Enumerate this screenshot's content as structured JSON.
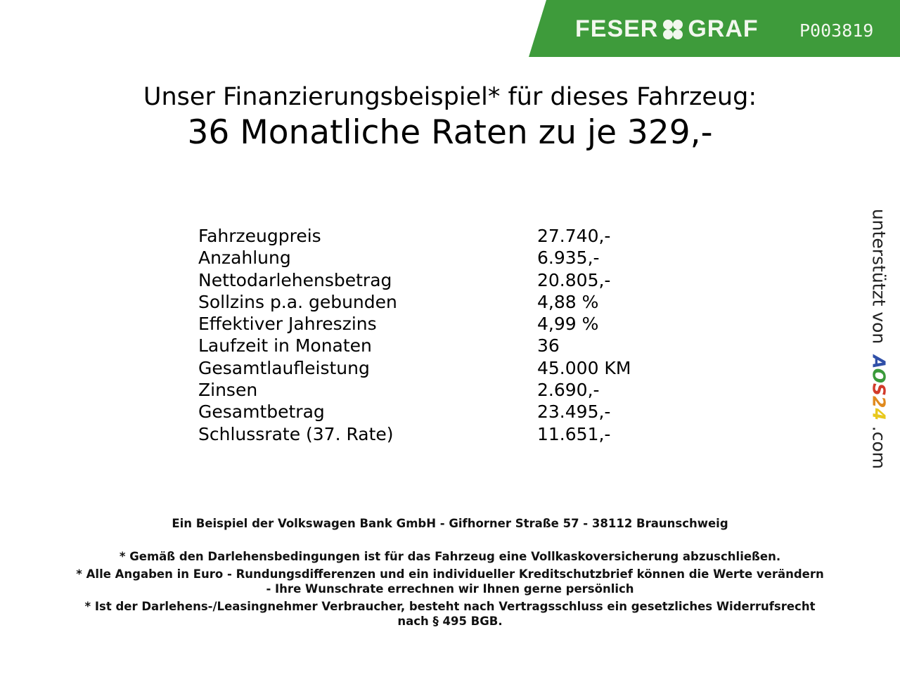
{
  "header": {
    "brand": "FESER GRAF",
    "code": "P003819",
    "brand_color": "#3e9b3b"
  },
  "title": {
    "line1": "Unser Finanzierungsbeispiel* für dieses Fahrzeug:",
    "line2": "36 Monatliche Raten zu je 329,-"
  },
  "rows": [
    {
      "label": "Fahrzeugpreis",
      "value": "27.740,-"
    },
    {
      "label": "Anzahlung",
      "value": "6.935,-"
    },
    {
      "label": "Nettodarlehensbetrag",
      "value": "20.805,-"
    },
    {
      "label": "Sollzins p.a. gebunden",
      "value": "4,88 %"
    },
    {
      "label": "Effektiver Jahreszins",
      "value": "4,99 %"
    },
    {
      "label": "Laufzeit in Monaten",
      "value": "36"
    },
    {
      "label": "Gesamtlaufleistung",
      "value": "45.000 KM"
    },
    {
      "label": "Zinsen",
      "value": "2.690,-"
    },
    {
      "label": "Gesamtbetrag",
      "value": "23.495,-"
    },
    {
      "label": "Schlussrate (37. Rate)",
      "value": "11.651,-"
    }
  ],
  "footer": {
    "bank": "Ein Beispiel der Volkswagen Bank GmbH - Gifhorner Straße 57 - 38112 Braunschweig",
    "note1": "* Gemäß den Darlehensbedingungen ist für das Fahrzeug eine Vollkaskoversicherung abzuschließen.",
    "note2a": "* Alle Angaben in Euro - Rundungsdifferenzen und ein individueller Kreditschutzbrief können die Werte verändern",
    "note2b": "- Ihre Wunschrate errechnen wir Ihnen gerne persönlich",
    "note3a": "* Ist der Darlehens-/Leasingnehmer Verbraucher, besteht nach Vertragsschluss ein gesetzliches Widerrufsrecht",
    "note3b": "nach § 495 BGB."
  },
  "side": {
    "prefix": "unterstützt von",
    "logo": [
      "A",
      "O",
      "S",
      "2",
      "4"
    ],
    "suffix": ".com",
    "logo_colors": [
      "#2f4fa8",
      "#3a9a3a",
      "#d23a2a",
      "#e08a1e",
      "#e8c81e"
    ]
  }
}
